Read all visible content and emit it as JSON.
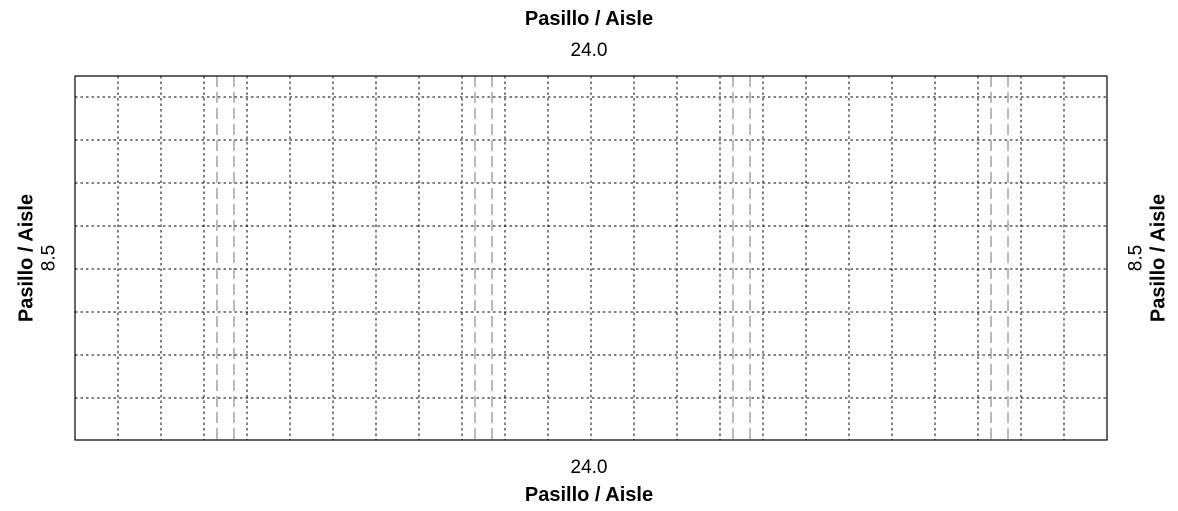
{
  "top": {
    "aisle_label": "Pasillo / Aisle",
    "dimension": "24.0"
  },
  "bottom": {
    "aisle_label": "Pasillo / Aisle",
    "dimension": "24.0"
  },
  "left": {
    "aisle_label": "Pasillo / Aisle",
    "dimension": "8.5"
  },
  "right": {
    "aisle_label": "Pasillo / Aisle",
    "dimension": "8.5"
  },
  "colors": {
    "border": "#000000",
    "grid_line": "#000000",
    "divider_line": "#8c8c8c"
  }
}
